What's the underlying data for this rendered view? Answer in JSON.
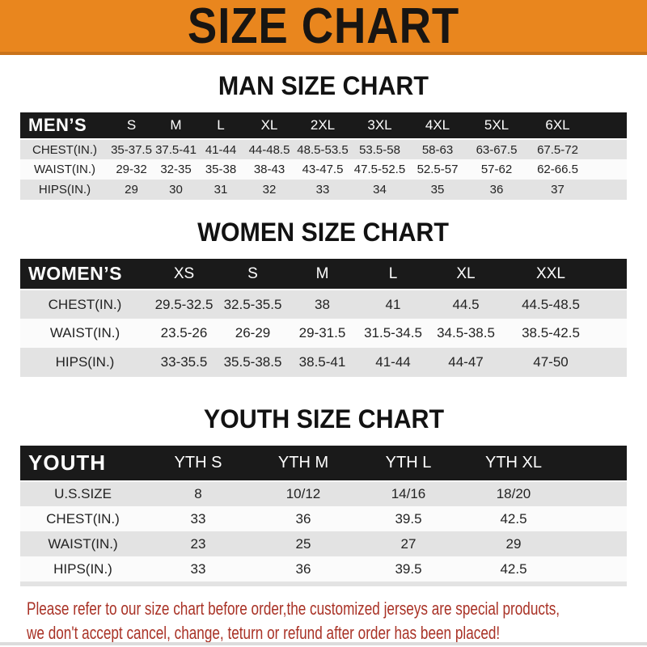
{
  "banner": {
    "title": "SIZE CHART"
  },
  "colors": {
    "banner_bg": "#E9861E",
    "banner_edge": "#C9731A",
    "header_bar": "#1A1A1A",
    "row_gray": "#E3E3E3",
    "row_white": "#FBFBFB",
    "footer_red": "#A93226"
  },
  "sections": {
    "men": {
      "heading": "MAN SIZE CHART",
      "table": {
        "header_label": "MEN’S",
        "sizes": [
          "S",
          "M",
          "L",
          "XL",
          "2XL",
          "3XL",
          "4XL",
          "5XL",
          "6XL"
        ],
        "rows": [
          {
            "label": "CHEST(IN.)",
            "values": [
              "35-37.5",
              "37.5-41",
              "41-44",
              "44-48.5",
              "48.5-53.5",
              "53.5-58",
              "58-63",
              "63-67.5",
              "67.5-72"
            ]
          },
          {
            "label": "WAIST(IN.)",
            "values": [
              "29-32",
              "32-35",
              "35-38",
              "38-43",
              "43-47.5",
              "47.5-52.5",
              "52.5-57",
              "57-62",
              "62-66.5"
            ]
          },
          {
            "label": "HIPS(IN.)",
            "values": [
              "29",
              "30",
              "31",
              "32",
              "33",
              "34",
              "35",
              "36",
              "37"
            ]
          }
        ]
      }
    },
    "women": {
      "heading": "WOMEN SIZE CHART",
      "table": {
        "header_label": "WOMEN’S",
        "sizes": [
          "XS",
          "S",
          "M",
          "L",
          "XL",
          "XXL"
        ],
        "rows": [
          {
            "label": "CHEST(IN.)",
            "values": [
              "29.5-32.5",
              "32.5-35.5",
              "38",
              "41",
              "44.5",
              "44.5-48.5"
            ]
          },
          {
            "label": "WAIST(IN.)",
            "values": [
              "23.5-26",
              "26-29",
              "29-31.5",
              "31.5-34.5",
              "34.5-38.5",
              "38.5-42.5"
            ]
          },
          {
            "label": "HIPS(IN.)",
            "values": [
              "33-35.5",
              "35.5-38.5",
              "38.5-41",
              "41-44",
              "44-47",
              "47-50"
            ]
          }
        ]
      }
    },
    "youth": {
      "heading": "YOUTH SIZE CHART",
      "table": {
        "header_label": "YOUTH",
        "sizes": [
          "YTH S",
          "YTH M",
          "YTH L",
          "YTH XL"
        ],
        "rows": [
          {
            "label": "U.S.SIZE",
            "values": [
              "8",
              "10/12",
              "14/16",
              "18/20"
            ]
          },
          {
            "label": "CHEST(IN.)",
            "values": [
              "33",
              "36",
              "39.5",
              "42.5"
            ]
          },
          {
            "label": "WAIST(IN.)",
            "values": [
              "23",
              "25",
              "27",
              "29"
            ]
          },
          {
            "label": "HIPS(IN.)",
            "values": [
              "33",
              "36",
              "39.5",
              "42.5"
            ]
          }
        ]
      }
    }
  },
  "footer": {
    "line1": "Please refer to our size chart before order,the customized jerseys are special products,",
    "line2": "we don't accept cancel, change, teturn or refund after order has been placed!"
  }
}
